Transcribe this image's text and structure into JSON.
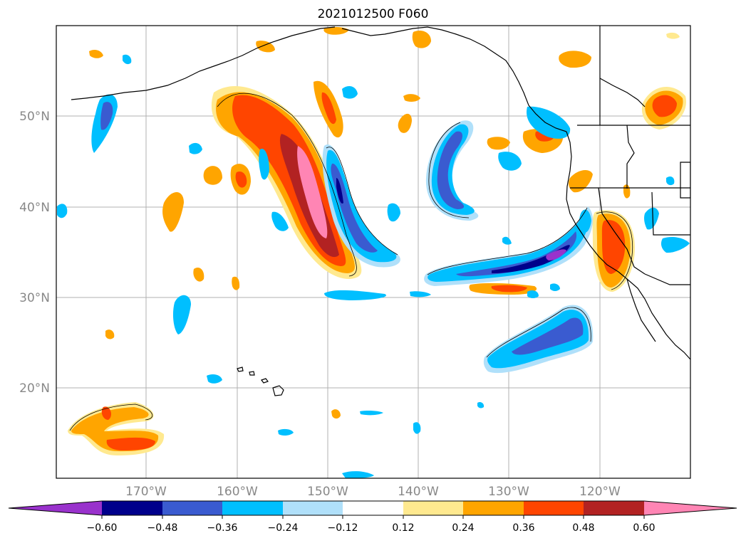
{
  "title": "2021012500 F060",
  "map": {
    "lat_ticks": [
      "50°N",
      "40°N",
      "30°N",
      "20°N"
    ],
    "lon_ticks": [
      "170°W",
      "160°W",
      "150°W",
      "140°W",
      "130°W",
      "120°W"
    ],
    "grid": true,
    "land_outline_color": "#000000"
  },
  "colorbar": {
    "orientation": "horizontal",
    "extend": "both",
    "colors": [
      "#9932cc",
      "#00008b",
      "#3a5bd0",
      "#00bfff",
      "#b0e0fa",
      "#ffffff",
      "#ffe98f",
      "#ffa500",
      "#ff4500",
      "#b22222",
      "#ff85b4",
      "#ff85b4"
    ],
    "tick_labels": [
      "−0.60",
      "−0.48",
      "−0.36",
      "−0.24",
      "−0.12",
      "0.12",
      "0.24",
      "0.36",
      "0.48",
      "0.60"
    ]
  }
}
